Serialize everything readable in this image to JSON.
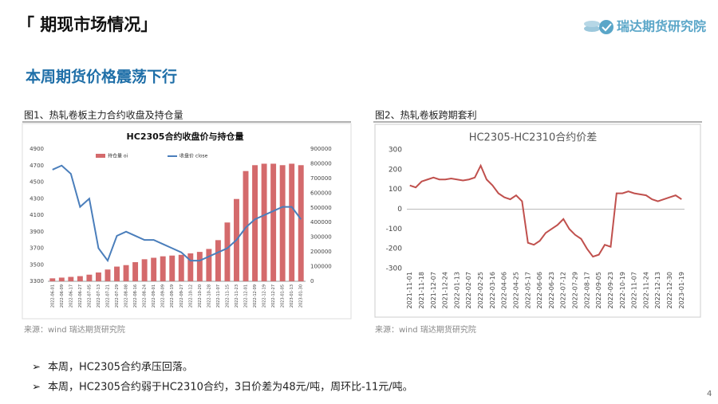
{
  "header": {
    "title": "「 期现市场情况」",
    "logo": "瑞达期货研究院"
  },
  "section_title": "本周期货价格震荡下行",
  "bullets": [
    "本周，HC2305合约承压回落。",
    "本周，HC2305合约弱于HC2310合约，3日价差为48元/吨，周环比-11元/吨。"
  ],
  "page_number": "4",
  "chart_data": [
    {
      "type": "combo",
      "caption": "图1、热轧卷板主力合约收盘及持仓量",
      "title": "HC2305合约收盘价与持仓量",
      "source": "来源：wind   瑞达期货研究院",
      "categories": [
        "2022-06-01",
        "2022-06-09",
        "2022-06-17",
        "2022-06-27",
        "2022-07-05",
        "2022-07-13",
        "2022-07-21",
        "2022-07-29",
        "2022-08-08",
        "2022-08-16",
        "2022-08-24",
        "2022-09-01",
        "2022-09-09",
        "2022-09-19",
        "2022-09-27",
        "2022-10-12",
        "2022-10-20",
        "2022-10-28",
        "2022-11-07",
        "2022-11-15",
        "2022-11-23",
        "2022-12-01",
        "2022-12-09",
        "2022-12-19",
        "2022-12-27",
        "2023-01-05",
        "2023-01-13",
        "2023-01-30"
      ],
      "series": [
        {
          "name": "持仓量 oi",
          "kind": "bar",
          "axis": "y2",
          "color": "#d46a6c",
          "values": [
            20000,
            25000,
            30000,
            35000,
            45000,
            60000,
            80000,
            100000,
            110000,
            130000,
            150000,
            160000,
            170000,
            175000,
            180000,
            190000,
            200000,
            220000,
            280000,
            400000,
            560000,
            750000,
            790000,
            800000,
            800000,
            790000,
            800000,
            790000
          ]
        },
        {
          "name": "收盘价 close",
          "kind": "line",
          "color": "#4a7ebb",
          "values": [
            4650,
            4700,
            4600,
            4200,
            4300,
            3700,
            3550,
            3850,
            3900,
            3850,
            3800,
            3800,
            3750,
            3700,
            3650,
            3550,
            3550,
            3600,
            3650,
            3700,
            3800,
            3950,
            4050,
            4100,
            4150,
            4200,
            4200,
            4050
          ]
        }
      ],
      "ylim": [
        3300,
        4900
      ],
      "yticks": [
        3300,
        3500,
        3700,
        3900,
        4100,
        4300,
        4500,
        4700,
        4900
      ],
      "y2lim": [
        0,
        900000
      ],
      "y2ticks": [
        0,
        100000,
        200000,
        300000,
        400000,
        500000,
        600000,
        700000,
        800000,
        900000
      ]
    },
    {
      "type": "line",
      "caption": "图2、热轧卷板跨期套利",
      "title": "HC2305-HC2310合约价差",
      "source": "来源：wind   瑞达期货研究院",
      "categories": [
        "2021-11-01",
        null,
        "2021-11-18",
        null,
        "2021-12-07",
        null,
        "2021-12-24",
        null,
        "2022-01-13",
        null,
        "2022-02-07",
        null,
        "2022-02-25",
        null,
        "2022-03-16",
        null,
        "2022-04-06",
        null,
        "2022-04-25",
        null,
        "2022-05-17",
        null,
        "2022-06-06",
        null,
        "2022-06-23",
        null,
        "2022-07-12",
        null,
        "2022-07-29",
        null,
        "2022-08-17",
        null,
        "2022-09-05",
        null,
        "2022-09-23",
        null,
        "2022-10-19",
        null,
        "2022-11-07",
        null,
        "2022-11-24",
        null,
        "2022-12-13",
        null,
        "2022-12-30",
        null,
        "2023-01-19"
      ],
      "color": "#c0504d",
      "values": [
        120,
        110,
        140,
        150,
        160,
        150,
        150,
        155,
        150,
        145,
        150,
        160,
        220,
        150,
        120,
        80,
        60,
        50,
        70,
        40,
        -170,
        -180,
        -160,
        -120,
        -100,
        -80,
        -50,
        -100,
        -130,
        -150,
        -200,
        -240,
        -230,
        -180,
        -190,
        80,
        80,
        90,
        80,
        75,
        70,
        50,
        40,
        50,
        60,
        70,
        50
      ],
      "ylim": [
        -300,
        300
      ],
      "yticks": [
        -300,
        -200,
        -100,
        0,
        100,
        200,
        300
      ]
    }
  ]
}
